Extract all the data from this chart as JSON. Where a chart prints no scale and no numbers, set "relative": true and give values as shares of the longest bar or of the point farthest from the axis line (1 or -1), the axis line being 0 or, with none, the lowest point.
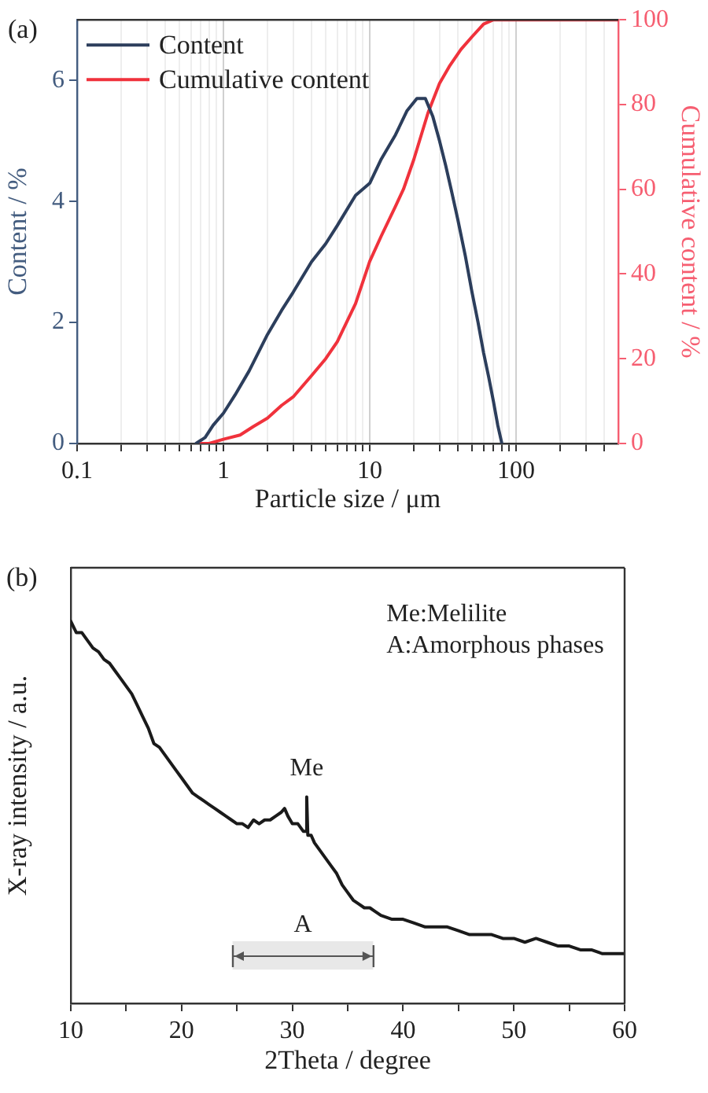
{
  "chart_data": [
    {
      "type": "line",
      "title": "(a)",
      "xlabel": "Particle size / μm",
      "ylabel": "Content / %",
      "y2label": "Cumulative content / %",
      "log": "x",
      "grid": "x",
      "legend": "top left",
      "xlim": [
        0.1,
        500
      ],
      "xticks": [
        0.1,
        {
          "value": 0.2,
          "label": null
        },
        {
          "value": 0.3,
          "label": null
        },
        {
          "value": 0.4,
          "label": null
        },
        {
          "value": 0.5,
          "label": null
        },
        {
          "value": 0.6,
          "label": null
        },
        {
          "value": 0.7,
          "label": null
        },
        {
          "value": 0.8,
          "label": null
        },
        {
          "value": 0.9,
          "label": null
        },
        1,
        {
          "value": 2,
          "label": null
        },
        {
          "value": 3,
          "label": null
        },
        {
          "value": 4,
          "label": null
        },
        {
          "value": 5,
          "label": null
        },
        {
          "value": 6,
          "label": null
        },
        {
          "value": 7,
          "label": null
        },
        {
          "value": 8,
          "label": null
        },
        {
          "value": 9,
          "label": null
        },
        10,
        {
          "value": 20,
          "label": null
        },
        {
          "value": 30,
          "label": null
        },
        {
          "value": 40,
          "label": null
        },
        {
          "value": 50,
          "label": null
        },
        {
          "value": 60,
          "label": null
        },
        {
          "value": 70,
          "label": null
        },
        {
          "value": 80,
          "label": null
        },
        {
          "value": 90,
          "label": null
        },
        100,
        {
          "value": 200,
          "label": null
        },
        {
          "value": 300,
          "label": null
        },
        {
          "value": 400,
          "label": null
        }
      ],
      "ylim": [
        0,
        7
      ],
      "yticks": [
        0,
        2,
        4,
        6
      ],
      "y2lim": [
        0,
        100
      ],
      "y2ticks": [
        0,
        20,
        40,
        60,
        80,
        100
      ],
      "series": [
        {
          "name": "Content",
          "color": "#2c3e5c",
          "x": [
            0.65,
            0.75,
            0.85,
            1,
            1.2,
            1.5,
            2,
            2.5,
            3,
            4,
            5,
            6,
            8,
            10,
            12,
            15,
            18,
            21,
            24,
            27,
            30,
            33,
            36,
            40,
            45,
            50,
            55,
            60,
            65,
            70,
            75,
            80
          ],
          "values": [
            0,
            0.1,
            0.3,
            0.5,
            0.8,
            1.2,
            1.8,
            2.2,
            2.5,
            3.0,
            3.3,
            3.6,
            4.1,
            4.3,
            4.7,
            5.1,
            5.5,
            5.7,
            5.7,
            5.4,
            5.0,
            4.6,
            4.2,
            3.7,
            3.1,
            2.5,
            2.0,
            1.5,
            1.1,
            0.7,
            0.3,
            0
          ]
        },
        {
          "name": "Cumulative content",
          "color": "#f0323c",
          "axis": "y2",
          "x": [
            0.7,
            0.8,
            1,
            1.3,
            1.6,
            2,
            2.5,
            3,
            4,
            5,
            6,
            8,
            10,
            12,
            15,
            17,
            20,
            25,
            30,
            35,
            42,
            50,
            60,
            70,
            100,
            200,
            500
          ],
          "values": [
            0,
            0,
            1,
            2,
            4,
            6,
            9,
            11,
            16,
            20,
            24,
            33,
            43,
            49,
            56,
            60,
            67,
            78,
            85,
            89,
            93,
            96,
            99,
            100,
            100,
            100,
            100
          ]
        }
      ]
    },
    {
      "type": "line",
      "title": "(b)",
      "xlabel": "2Theta / degree",
      "ylabel": "X-ray intensity / a.u.",
      "relative": true,
      "color": "#1a1a1a",
      "xlim": [
        10,
        60
      ],
      "xticks": [
        10,
        {
          "value": 15,
          "label": null
        },
        20,
        {
          "value": 25,
          "label": null
        },
        30,
        {
          "value": 35,
          "label": null
        },
        40,
        {
          "value": 45,
          "label": null
        },
        50,
        {
          "value": 55,
          "label": null
        },
        60
      ],
      "x": [
        10,
        10.5,
        11,
        11.5,
        12,
        12.5,
        13,
        13.5,
        14,
        14.5,
        15,
        15.5,
        16,
        16.5,
        17,
        17.5,
        18,
        18.5,
        19,
        19.5,
        20,
        20.5,
        21,
        21.5,
        22,
        22.5,
        23,
        23.5,
        24,
        24.5,
        25,
        25.5,
        26,
        26.5,
        27,
        27.5,
        28,
        28.5,
        29,
        29.3,
        29.6,
        30,
        30.5,
        31,
        31.2,
        31.3,
        31.4,
        31.7,
        32,
        32.5,
        33,
        33.5,
        34,
        34.5,
        35,
        35.5,
        36,
        36.5,
        37,
        37.5,
        38,
        39,
        40,
        41,
        42,
        43,
        44,
        45,
        46,
        47,
        48,
        49,
        50,
        51,
        52,
        53,
        54,
        55,
        56,
        57,
        58,
        59,
        60
      ],
      "values": [
        1.0,
        0.97,
        0.97,
        0.95,
        0.93,
        0.92,
        0.9,
        0.89,
        0.87,
        0.85,
        0.83,
        0.81,
        0.78,
        0.75,
        0.72,
        0.68,
        0.67,
        0.65,
        0.63,
        0.61,
        0.59,
        0.57,
        0.55,
        0.54,
        0.53,
        0.52,
        0.51,
        0.5,
        0.49,
        0.48,
        0.47,
        0.47,
        0.46,
        0.48,
        0.47,
        0.48,
        0.48,
        0.49,
        0.5,
        0.51,
        0.49,
        0.47,
        0.47,
        0.45,
        0.45,
        0.54,
        0.44,
        0.44,
        0.42,
        0.4,
        0.38,
        0.36,
        0.34,
        0.31,
        0.29,
        0.27,
        0.26,
        0.25,
        0.25,
        0.24,
        0.23,
        0.22,
        0.22,
        0.21,
        0.2,
        0.2,
        0.2,
        0.19,
        0.18,
        0.18,
        0.18,
        0.17,
        0.17,
        0.16,
        0.17,
        0.16,
        0.15,
        0.15,
        0.14,
        0.14,
        0.13,
        0.13,
        0.13
      ],
      "annotations": [
        "Me:Melilite",
        "A:Amorphous phases",
        {
          "text": "Me",
          "x": 31.3,
          "y": 0.54
        }
      ],
      "bands": [
        {
          "axis": "x",
          "from": 24.6,
          "to": 37.3,
          "label": "A"
        }
      ]
    }
  ]
}
